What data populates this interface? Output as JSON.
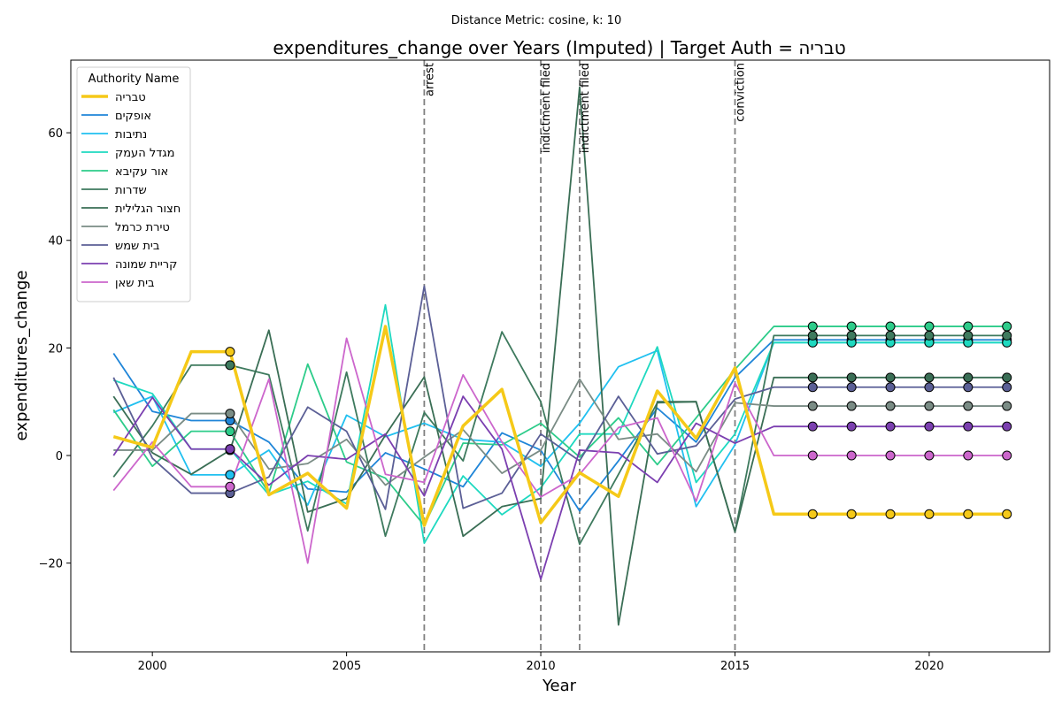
{
  "figure": {
    "suptitle": "Distance Metric: cosine, k: 10"
  },
  "chart_data": {
    "type": "line",
    "title": "expenditures_change over Years (Imputed) | Target Auth = טבריה",
    "xlabel": "Year",
    "ylabel": "expenditures_change",
    "xlim": [
      1997.9,
      2023.1
    ],
    "ylim": [
      -36.5,
      73.5
    ],
    "xticks": [
      2000,
      2005,
      2010,
      2015,
      2020
    ],
    "yticks": [
      -20,
      0,
      20,
      40,
      60
    ],
    "ytick_labels": [
      "−20",
      "0",
      "20",
      "40",
      "60"
    ],
    "grid": false,
    "legend": {
      "title": "Authority Name",
      "placement": "top-left"
    },
    "x": [
      1999,
      2000,
      2001,
      2002,
      2003,
      2004,
      2005,
      2006,
      2007,
      2008,
      2009,
      2010,
      2011,
      2012,
      2013,
      2014,
      2015,
      2016,
      2017,
      2018,
      2019,
      2020,
      2021,
      2022
    ],
    "events": [
      {
        "year": 2007,
        "label": "arrest"
      },
      {
        "year": 2010,
        "label": "indictment filed"
      },
      {
        "year": 2011,
        "label": "indictment filed"
      },
      {
        "year": 2015,
        "label": "conviction"
      }
    ],
    "imputed_markers": {
      "before_years": [
        2002
      ],
      "after_years": [
        2017,
        2018,
        2019,
        2020,
        2021,
        2022
      ]
    },
    "series": [
      {
        "name": "טבריה",
        "color": "#f5c918",
        "target": true,
        "values": [
          3.5,
          1.5,
          19.3,
          19.3,
          -7.3,
          -3.3,
          -9.8,
          24,
          -13,
          5.5,
          12.3,
          -12.5,
          -3.2,
          -7.6,
          12,
          3.2,
          16.3,
          -10.9,
          -10.9,
          -10.9,
          -10.9,
          -10.9,
          -10.9,
          -10.9
        ]
      },
      {
        "name": "אופקים",
        "color": "#1f85d8",
        "values": [
          19,
          8.2,
          6.5,
          6.5,
          2.5,
          -6.2,
          -6.8,
          0.5,
          -2.5,
          -5.8,
          4.2,
          1,
          -10.3,
          -1,
          8.8,
          2.5,
          14.5,
          21.5,
          21.5,
          21.5,
          21.5,
          21.5,
          21.5,
          21.5
        ]
      },
      {
        "name": "נתיבות",
        "color": "#20c0f0",
        "values": [
          8,
          11,
          -3.6,
          -3.6,
          1,
          -9.2,
          7.5,
          3.5,
          6,
          3,
          2.5,
          -2,
          6,
          16.5,
          19.5,
          -9.5,
          2,
          21,
          21,
          21,
          21,
          21,
          21,
          21
        ]
      },
      {
        "name": "מגדל העמק",
        "color": "#1ed9c0",
        "values": [
          14,
          11.5,
          1.2,
          1.2,
          -7.3,
          -4.8,
          -9,
          28,
          -16.3,
          -3.8,
          -11,
          -6,
          4,
          4,
          20.2,
          -5,
          4,
          21,
          21,
          21,
          21,
          21,
          21,
          21
        ]
      },
      {
        "name": "אור עקיבא",
        "color": "#2dcc8a",
        "values": [
          8.5,
          -2,
          4.5,
          4.5,
          -7,
          17,
          -1.2,
          -4.2,
          -13,
          2.3,
          2,
          6,
          -0.3,
          7,
          -1.7,
          7,
          16,
          24,
          24,
          24,
          24,
          24,
          24,
          24
        ]
      },
      {
        "name": "שדרות",
        "color": "#3e7a5e",
        "values": [
          -4,
          5.5,
          16.8,
          16.8,
          15,
          -14,
          15.5,
          -15,
          8,
          -1,
          23,
          10,
          -16.5,
          -3.5,
          9.8,
          10,
          -14.2,
          22.3,
          22.3,
          22.3,
          22.3,
          22.3,
          22.3,
          22.3
        ]
      },
      {
        "name": "חצור הגלילית",
        "color": "#3a6e55",
        "values": [
          11,
          0.5,
          -3.5,
          1,
          23.3,
          -10.5,
          -8,
          3.8,
          14.6,
          -15,
          -9.5,
          -8,
          68.5,
          -31.5,
          10,
          10,
          -14.2,
          14.5,
          14.5,
          14.5,
          14.5,
          14.5,
          14.5,
          14.5
        ]
      },
      {
        "name": "טירת כרמל",
        "color": "#7a8c85",
        "values": [
          1,
          1,
          7.8,
          7.8,
          -2.5,
          -1.5,
          3,
          -5.5,
          -0.3,
          4.8,
          -3.3,
          1,
          14.2,
          3,
          4,
          -3,
          9.8,
          9.2,
          9.2,
          9.2,
          9.2,
          9.2,
          9.2,
          9.2
        ]
      },
      {
        "name": "בית שמש",
        "color": "#5b5f96",
        "values": [
          14.5,
          -0.5,
          -7,
          -7,
          -4,
          9,
          4.5,
          -10,
          31.5,
          -9.8,
          -7,
          4,
          -1,
          11,
          0.3,
          1.8,
          10.5,
          12.7,
          12.7,
          12.7,
          12.7,
          12.7,
          12.7,
          12.7
        ]
      },
      {
        "name": "קריית שמונה",
        "color": "#7b3fb0",
        "values": [
          0,
          10.8,
          1.2,
          1.2,
          -5.5,
          0,
          -0.7,
          4,
          -7.5,
          11,
          1.2,
          -23,
          1,
          0.5,
          -5,
          6,
          2.3,
          5.4,
          5.4,
          5.4,
          5.4,
          5.4,
          5.4,
          5.4
        ]
      },
      {
        "name": "בית שאן",
        "color": "#cc66cc",
        "values": [
          -6.5,
          2.5,
          -5.8,
          -5.8,
          14.2,
          -20,
          21.8,
          -3.5,
          -5,
          15,
          2.5,
          -7.7,
          -3.5,
          5.2,
          7,
          -8.5,
          13.5,
          0,
          0,
          0,
          0,
          0,
          0,
          0
        ]
      }
    ]
  }
}
